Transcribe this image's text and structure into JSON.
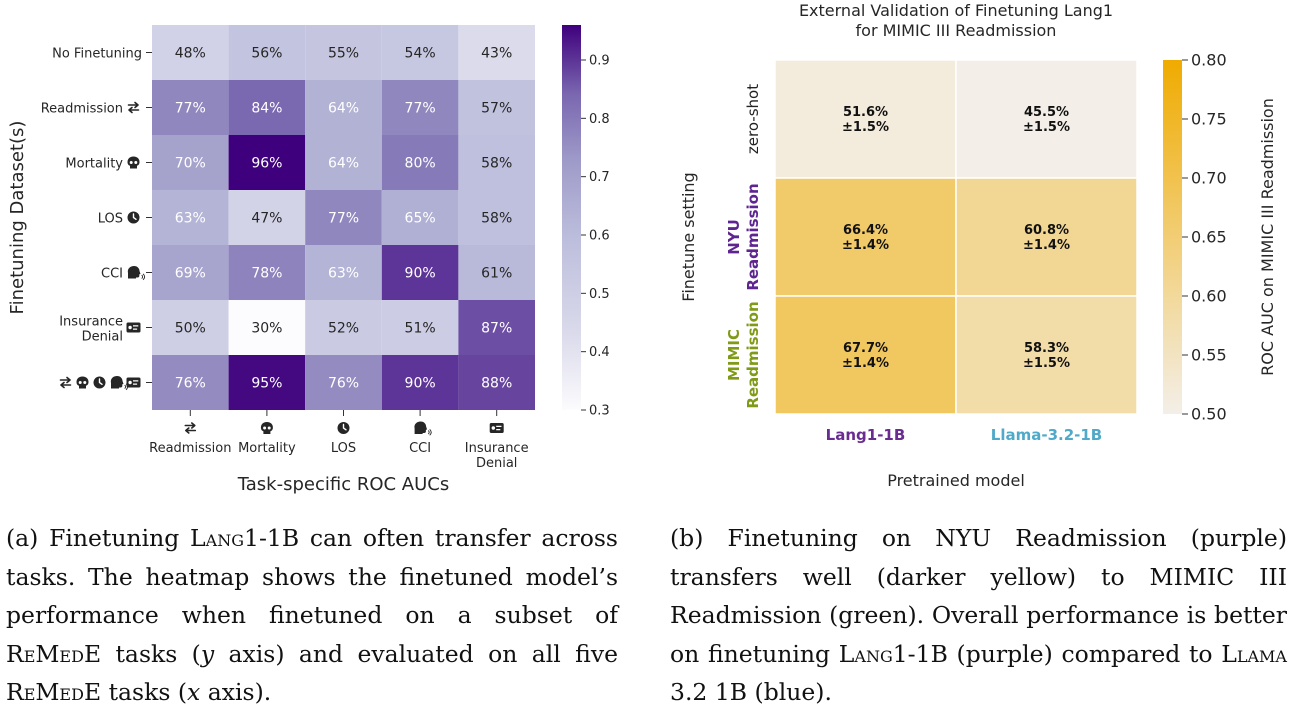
{
  "chart_data": [
    {
      "type": "heatmap",
      "panel": "a",
      "title": "",
      "xlabel": "Task-specific ROC AUCs",
      "ylabel": "Finetuning Dataset(s)",
      "x_categories": [
        {
          "label": "Readmission",
          "icon": "swap-arrows-icon"
        },
        {
          "label": "Mortality",
          "icon": "skull-icon"
        },
        {
          "label": "LOS",
          "icon": "clock-icon"
        },
        {
          "label": "CCI",
          "icon": "head-silhouette-icon"
        },
        {
          "label": "Insurance Denial",
          "icon": "card-icon"
        }
      ],
      "y_categories": [
        {
          "label": "No Finetuning",
          "icons": []
        },
        {
          "label": "Readmission",
          "icons": [
            "swap-arrows-icon"
          ]
        },
        {
          "label": "Mortality",
          "icons": [
            "skull-icon"
          ]
        },
        {
          "label": "LOS",
          "icons": [
            "clock-icon"
          ]
        },
        {
          "label": "CCI",
          "icons": [
            "head-silhouette-icon"
          ]
        },
        {
          "label": "Insurance Denial",
          "icons": [
            "card-icon"
          ]
        },
        {
          "label": "",
          "icons": [
            "swap-arrows-icon",
            "skull-icon",
            "clock-icon",
            "head-silhouette-icon",
            "card-icon"
          ]
        }
      ],
      "values": [
        [
          0.48,
          0.56,
          0.55,
          0.54,
          0.43
        ],
        [
          0.77,
          0.84,
          0.64,
          0.77,
          0.57
        ],
        [
          0.7,
          0.96,
          0.64,
          0.8,
          0.58
        ],
        [
          0.63,
          0.47,
          0.77,
          0.65,
          0.58
        ],
        [
          0.69,
          0.78,
          0.63,
          0.9,
          0.61
        ],
        [
          0.5,
          0.3,
          0.52,
          0.51,
          0.87
        ],
        [
          0.76,
          0.95,
          0.76,
          0.9,
          0.88
        ]
      ],
      "cell_labels": [
        [
          "48%",
          "56%",
          "55%",
          "54%",
          "43%"
        ],
        [
          "77%",
          "84%",
          "64%",
          "77%",
          "57%"
        ],
        [
          "70%",
          "96%",
          "64%",
          "80%",
          "58%"
        ],
        [
          "63%",
          "47%",
          "77%",
          "65%",
          "58%"
        ],
        [
          "69%",
          "78%",
          "63%",
          "90%",
          "61%"
        ],
        [
          "50%",
          "30%",
          "52%",
          "51%",
          "87%"
        ],
        [
          "76%",
          "95%",
          "76%",
          "90%",
          "88%"
        ]
      ],
      "colormap": "Purples",
      "color_range": [
        0.3,
        0.96
      ],
      "colorbar_ticks": [
        {
          "value": 0.3,
          "label": "0.3"
        },
        {
          "value": 0.4,
          "label": "0.4"
        },
        {
          "value": 0.5,
          "label": "0.5"
        },
        {
          "value": 0.6,
          "label": "0.6"
        },
        {
          "value": 0.7,
          "label": "0.7"
        },
        {
          "value": 0.8,
          "label": "0.8"
        },
        {
          "value": 0.9,
          "label": "0.9"
        }
      ]
    },
    {
      "type": "heatmap",
      "panel": "b",
      "title": "External Validation of Finetuning Lang1\nfor MIMIC III Readmission",
      "xlabel": "Pretrained model",
      "ylabel": "Finetune setting",
      "x_categories": [
        {
          "label": "Lang1-1B",
          "color": "#6a2c91"
        },
        {
          "label": "Llama-3.2-1B",
          "color": "#4fa9c8"
        }
      ],
      "y_categories": [
        {
          "lines": [
            "zero-shot"
          ],
          "color": "#222222",
          "bold": false
        },
        {
          "lines": [
            "NYU",
            "Readmission"
          ],
          "color": "#5e2590",
          "bold": true
        },
        {
          "lines": [
            "MIMIC",
            "Readmission"
          ],
          "color": "#7f9a17",
          "bold": true
        }
      ],
      "values": [
        [
          0.516,
          0.455
        ],
        [
          0.664,
          0.608
        ],
        [
          0.677,
          0.583
        ]
      ],
      "errors": [
        [
          0.015,
          0.015
        ],
        [
          0.014,
          0.014
        ],
        [
          0.014,
          0.015
        ]
      ],
      "cell_labels": [
        [
          [
            "51.6%",
            "±1.5%"
          ],
          [
            "45.5%",
            "±1.5%"
          ]
        ],
        [
          [
            "66.4%",
            "±1.4%"
          ],
          [
            "60.8%",
            "±1.4%"
          ]
        ],
        [
          [
            "67.7%",
            "±1.4%"
          ],
          [
            "58.3%",
            "±1.5%"
          ]
        ]
      ],
      "colormap": "cream-to-gold",
      "color_low": "#f3efe8",
      "color_high": "#f0ab00",
      "color_range": [
        0.5,
        0.8
      ],
      "colorbar_label": "ROC AUC on MIMIC III Readmission",
      "colorbar_ticks": [
        {
          "value": 0.5,
          "label": "0.50"
        },
        {
          "value": 0.55,
          "label": "0.55"
        },
        {
          "value": 0.6,
          "label": "0.60"
        },
        {
          "value": 0.65,
          "label": "0.65"
        },
        {
          "value": 0.7,
          "label": "0.70"
        },
        {
          "value": 0.75,
          "label": "0.75"
        },
        {
          "value": 0.8,
          "label": "0.80"
        }
      ]
    }
  ],
  "captions": {
    "a": {
      "tag": "(a)",
      "p1": " Finetuning ",
      "model_sc": "Lang",
      "model_rest": "1-1B",
      "p2": " can often transfer across tasks. The heatmap shows the finetuned model’s performance when finetuned on a subset of ",
      "remede1_sc1": "ReMed",
      "remede1_e": "E",
      "p3": " tasks (",
      "axis_y": "y",
      "p4": " axis) and evaluated on all five ",
      "remede2_sc1": "ReMed",
      "remede2_e": "E",
      "p5": " tasks (",
      "axis_x": "x",
      "p6": " axis)."
    },
    "b": {
      "tag": "(b)",
      "p1": " Finetuning on NYU Readmission (purple) transfers well (darker yellow) to MIMIC III Readmission (green). Overall performance is better on finetuning ",
      "model_sc": "Lang",
      "model_rest": "1-1B",
      "p2": " (purple) compared to ",
      "llama_sc": "Llama",
      "p3": " 3.2 1B (blue)."
    }
  }
}
